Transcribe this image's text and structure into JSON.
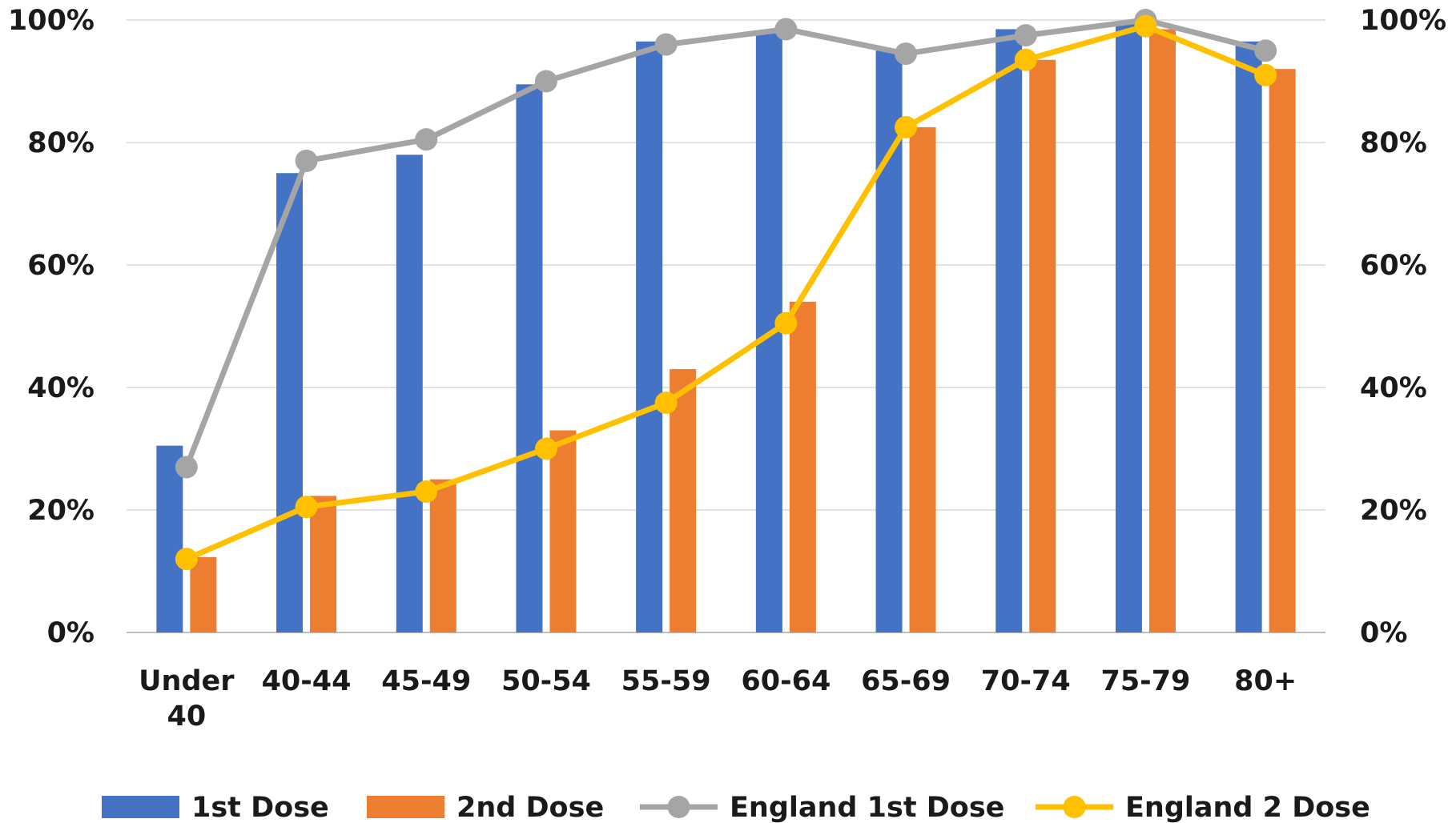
{
  "chart_data": {
    "type": "bar",
    "categories": [
      [
        "Under",
        "40"
      ],
      [
        "40-44"
      ],
      [
        "45-49"
      ],
      [
        "50-54"
      ],
      [
        "55-59"
      ],
      [
        "60-64"
      ],
      [
        "65-69"
      ],
      [
        "70-74"
      ],
      [
        "75-79"
      ],
      [
        "80+"
      ]
    ],
    "series": [
      {
        "name": "1st Dose",
        "type": "bar",
        "color": "#4472C4",
        "values": [
          30.5,
          75,
          78,
          89.5,
          96.5,
          98,
          95,
          98.5,
          99.5,
          96.5
        ]
      },
      {
        "name": "2nd Dose",
        "type": "bar",
        "color": "#ED7D31",
        "values": [
          12.3,
          22.3,
          25,
          33,
          43,
          54,
          82.5,
          93.5,
          98.5,
          92
        ]
      },
      {
        "name": "England 1st Dose",
        "type": "line",
        "color": "#A5A5A5",
        "values": [
          27,
          77,
          80.5,
          90,
          96,
          98.5,
          94.5,
          97.5,
          100,
          95
        ]
      },
      {
        "name": "England 2 Dose",
        "type": "line",
        "color": "#FFC000",
        "values": [
          12,
          20.5,
          23,
          30,
          37.5,
          50.5,
          82.5,
          93.5,
          99,
          91
        ]
      }
    ],
    "y_ticks": [
      "0%",
      "20%",
      "40%",
      "60%",
      "80%",
      "100%"
    ],
    "y2_ticks": [
      "0%",
      "20%",
      "40%",
      "60%",
      "80%",
      "100%"
    ],
    "ylim": [
      0,
      100
    ],
    "y2lim": [
      0,
      100
    ],
    "grid": true,
    "legend_position": "bottom"
  }
}
